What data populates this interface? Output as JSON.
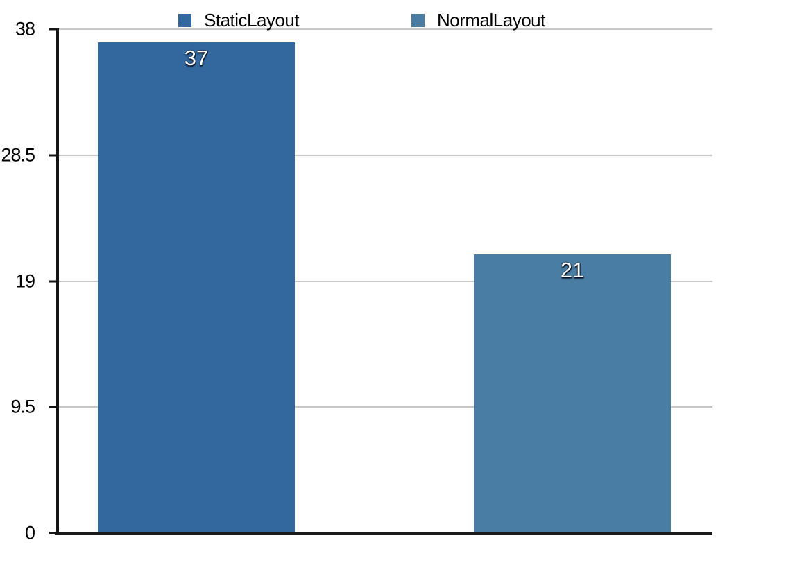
{
  "chart_data": {
    "type": "bar",
    "series": [
      {
        "name": "StaticLayout",
        "value": 37,
        "label": "37",
        "color": "#32689d"
      },
      {
        "name": "NormalLayout",
        "value": 21,
        "label": "21",
        "color": "#4a7da3"
      }
    ],
    "ylim": [
      0,
      38
    ],
    "yticks": [
      {
        "value": 38,
        "label": "38"
      },
      {
        "value": 28.5,
        "label": "28.5"
      },
      {
        "value": 19,
        "label": "19"
      },
      {
        "value": 9.5,
        "label": "9.5"
      },
      {
        "value": 0,
        "label": "0"
      }
    ],
    "grid": true,
    "legend_position": "top",
    "value_label_color": "#ffffff",
    "gridline_color": "#c7c7c7",
    "axis_color": "#141414"
  }
}
